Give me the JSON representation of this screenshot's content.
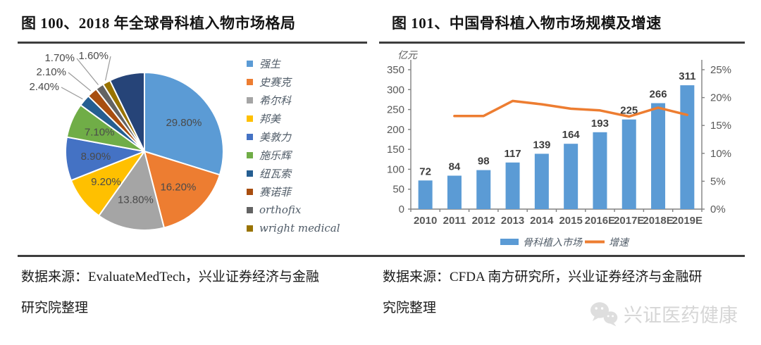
{
  "figures": [
    {
      "title": "图 100、2018 年全球骨科植入物市场格局",
      "source_lines": [
        "数据来源：EvaluateMedTech，兴业证券经济与金融",
        "研究院整理"
      ]
    },
    {
      "title": "图 101、中国骨科植入物市场规模及增速",
      "source_lines": [
        "数据来源：CFDA 南方研究所，兴业证券经济与金融研",
        "究院整理"
      ]
    }
  ],
  "watermark": {
    "icon": "wechat-icon",
    "text": "兴证医药健康"
  },
  "chart_data": [
    {
      "type": "pie",
      "title": "2018 年全球骨科植入物市场格局",
      "unit": "%",
      "legend_position": "right",
      "start_angle_deg": 0,
      "direction": "clockwise",
      "slices": [
        {
          "label": "强生",
          "value": 29.8,
          "display": "29.80%",
          "color": "#5B9BD5"
        },
        {
          "label": "史赛克",
          "value": 16.2,
          "display": "16.20%",
          "color": "#ED7D31"
        },
        {
          "label": "希尔科",
          "value": 13.8,
          "display": "13.80%",
          "color": "#A5A5A5"
        },
        {
          "label": "邦美",
          "value": 9.2,
          "display": "9.20%",
          "color": "#FFC000"
        },
        {
          "label": "美敦力",
          "value": 8.9,
          "display": "8.90%",
          "color": "#4472C4"
        },
        {
          "label": "施乐辉",
          "value": 7.1,
          "display": "7.10%",
          "color": "#70AD47"
        },
        {
          "label": "纽瓦索",
          "value": 2.4,
          "display": "2.40%",
          "color": "#255E91"
        },
        {
          "label": "赛诺菲",
          "value": 2.1,
          "display": "2.10%",
          "color": "#A84E0F"
        },
        {
          "label": "orthofix",
          "value": 1.7,
          "display": "1.70%",
          "color": "#636363"
        },
        {
          "label": "wright medical",
          "value": 1.6,
          "display": "1.60%",
          "color": "#997300"
        },
        {
          "label": "",
          "value": 7.2,
          "display": "",
          "color": "#264478"
        }
      ]
    },
    {
      "type": "bar+line",
      "title": "中国骨科植入物市场规模及增速",
      "axis_label": "亿元",
      "legend_position": "bottom",
      "categories": [
        "2010",
        "2011",
        "2012",
        "2013",
        "2014",
        "2015",
        "2016E",
        "2017E",
        "2018E",
        "2019E"
      ],
      "series": [
        {
          "name": "骨科植入市场",
          "type": "bar",
          "axis": "left",
          "color": "#5B9BD5",
          "values": [
            72,
            84,
            98,
            117,
            139,
            164,
            193,
            225,
            266,
            311
          ]
        },
        {
          "name": "增速",
          "type": "line",
          "axis": "right",
          "color": "#ED7D31",
          "values": [
            null,
            16.7,
            16.7,
            19.4,
            18.8,
            18.0,
            17.7,
            16.6,
            18.2,
            16.9
          ]
        }
      ],
      "left_axis": {
        "min": 0,
        "max": 350,
        "ticks": [
          "350",
          "300",
          "250",
          "200",
          "150",
          "100",
          "50",
          "0"
        ]
      },
      "right_axis": {
        "min": 0,
        "max": 25,
        "ticks": [
          "25%",
          "20%",
          "15%",
          "10%",
          "5%",
          "0%"
        ]
      }
    }
  ]
}
